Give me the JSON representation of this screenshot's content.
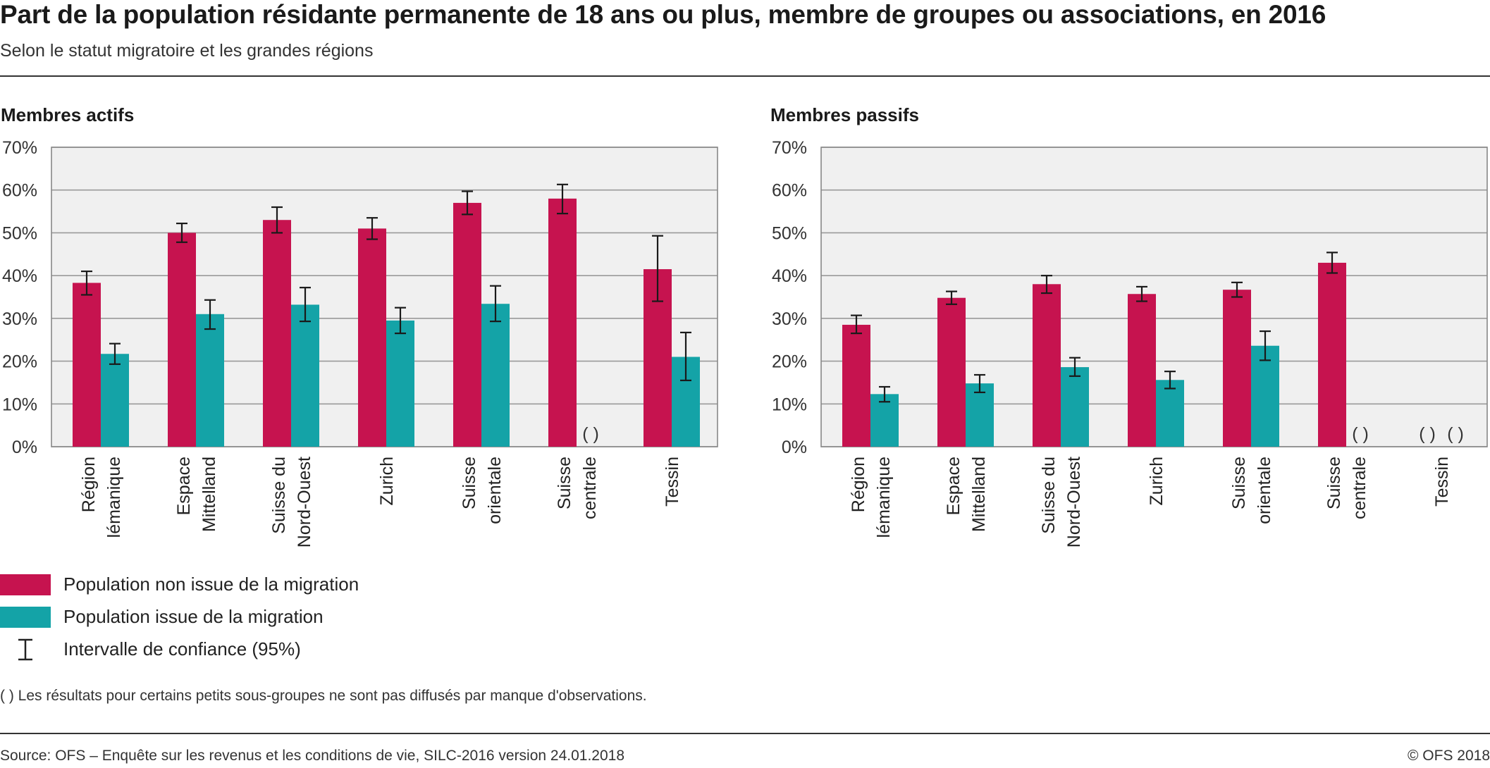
{
  "header": {
    "title": "Part de la population résidante permanente de 18 ans ou plus, membre de groupes ou associations, en 2016",
    "subtitle": "Selon le statut migratoire et les grandes régions"
  },
  "colors": {
    "non_migration": "#c6134f",
    "migration": "#14a3a7",
    "plot_background": "#f0f0f0",
    "grid": "#9a9a9a"
  },
  "legend": {
    "non_migration": "Population non issue de la migration",
    "migration": "Population issue de la migration",
    "ci": "Intervalle de confiance (95%)"
  },
  "footnote": "( ) Les résultats pour certains petits sous-groupes ne sont pas diffusés par manque d'observations.",
  "footer": {
    "source": "Source: OFS – Enquête sur les revenus et les conditions de vie, SILC-2016 version 24.01.2018",
    "copyright": "© OFS 2018"
  },
  "missing_marker": "( )",
  "chart_data": [
    {
      "type": "bar",
      "title": "Membres actifs",
      "categories": [
        [
          "Région",
          "lémanique"
        ],
        [
          "Espace",
          "Mittelland"
        ],
        [
          "Suisse du",
          "Nord-Ouest"
        ],
        [
          "Zurich"
        ],
        [
          "Suisse",
          "orientale"
        ],
        [
          "Suisse",
          "centrale"
        ],
        [
          "Tessin"
        ]
      ],
      "ylim": [
        0,
        70
      ],
      "yticks": [
        "0%",
        "10%",
        "20%",
        "30%",
        "40%",
        "50%",
        "60%",
        "70%"
      ],
      "grid": true,
      "series": [
        {
          "name": "Population non issue de la migration",
          "values": [
            38.3,
            50.0,
            53.0,
            51.0,
            57.0,
            58.0,
            41.5
          ],
          "ci_low": [
            35.5,
            47.8,
            50.0,
            48.5,
            54.3,
            54.5,
            34.0
          ],
          "ci_high": [
            41.0,
            52.2,
            56.0,
            53.5,
            59.7,
            61.3,
            49.3
          ]
        },
        {
          "name": "Population issue de la migration",
          "values": [
            21.7,
            31.0,
            33.2,
            29.5,
            33.4,
            null,
            21.0
          ],
          "ci_low": [
            19.3,
            27.5,
            29.3,
            26.5,
            29.3,
            null,
            15.5
          ],
          "ci_high": [
            24.1,
            34.3,
            37.2,
            32.5,
            37.6,
            null,
            26.7
          ]
        }
      ]
    },
    {
      "type": "bar",
      "title": "Membres passifs",
      "categories": [
        [
          "Région",
          "lémanique"
        ],
        [
          "Espace",
          "Mittelland"
        ],
        [
          "Suisse du",
          "Nord-Ouest"
        ],
        [
          "Zurich"
        ],
        [
          "Suisse",
          "orientale"
        ],
        [
          "Suisse",
          "centrale"
        ],
        [
          "Tessin"
        ]
      ],
      "ylim": [
        0,
        70
      ],
      "yticks": [
        "0%",
        "10%",
        "20%",
        "30%",
        "40%",
        "50%",
        "60%",
        "70%"
      ],
      "grid": true,
      "series": [
        {
          "name": "Population non issue de la migration",
          "values": [
            28.5,
            34.8,
            38.0,
            35.7,
            36.7,
            43.0,
            null
          ],
          "ci_low": [
            26.5,
            33.3,
            35.9,
            34.0,
            35.0,
            40.6,
            null
          ],
          "ci_high": [
            30.7,
            36.3,
            40.0,
            37.4,
            38.4,
            45.4,
            null
          ]
        },
        {
          "name": "Population issue de la migration",
          "values": [
            12.3,
            14.8,
            18.6,
            15.6,
            23.6,
            null,
            null
          ],
          "ci_low": [
            10.5,
            12.7,
            16.5,
            13.6,
            20.2,
            null,
            null
          ],
          "ci_high": [
            14.0,
            16.8,
            20.8,
            17.6,
            27.0,
            null,
            null
          ]
        }
      ]
    }
  ]
}
